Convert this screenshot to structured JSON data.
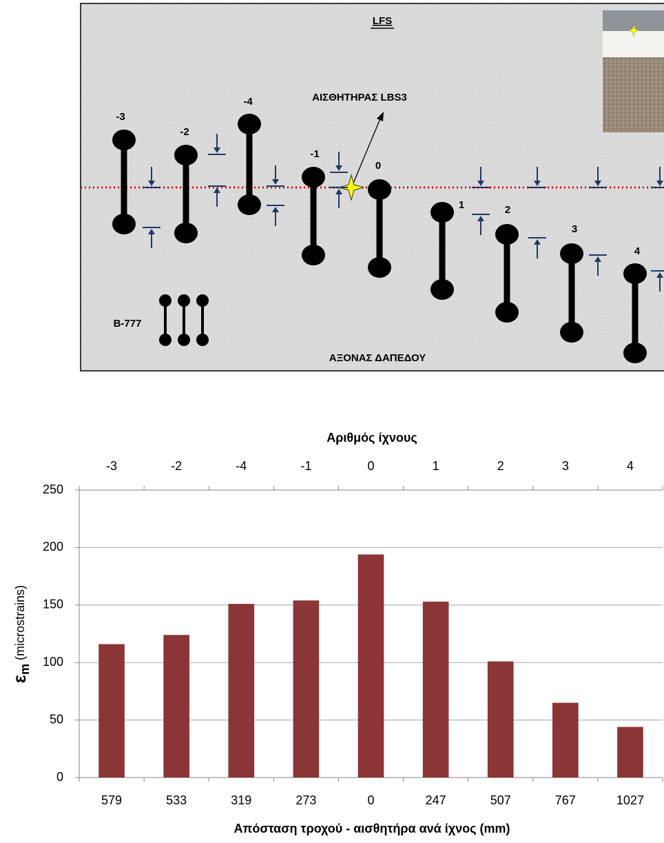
{
  "diagram": {
    "title": "LFS",
    "sensor": "ΑΙΣΘΗΤΗΡΑΣ LBS3",
    "aircraft": "B-777",
    "axis": "ΑΞΟΝΑΣ ΔΑΠΕΔΟΥ",
    "passes": [
      "-3",
      "-2",
      "-4",
      "-1",
      "0",
      "1",
      "2",
      "3",
      "4"
    ]
  },
  "chart_data": {
    "type": "bar",
    "categories": [
      "579",
      "533",
      "319",
      "273",
      "0",
      "247",
      "507",
      "767",
      "1027"
    ],
    "top_categories": [
      "-3",
      "-2",
      "-4",
      "-1",
      "0",
      "1",
      "2",
      "3",
      "4"
    ],
    "top_axis_title": "Αριθμός ίχνους",
    "x_axis_title": "Απόσταση τροχού - αισθητήρα ανά ίχνος (mm)",
    "y_label": {
      "symbol": "ε",
      "subscript": "m",
      "unit": "(microstrains)"
    },
    "values": [
      116,
      124,
      151,
      154,
      194,
      153,
      101,
      65,
      44
    ],
    "color": "#8b3536",
    "ylim": [
      0,
      250
    ],
    "yticks": [
      0,
      50,
      100,
      150,
      200,
      250
    ],
    "grid": true
  }
}
